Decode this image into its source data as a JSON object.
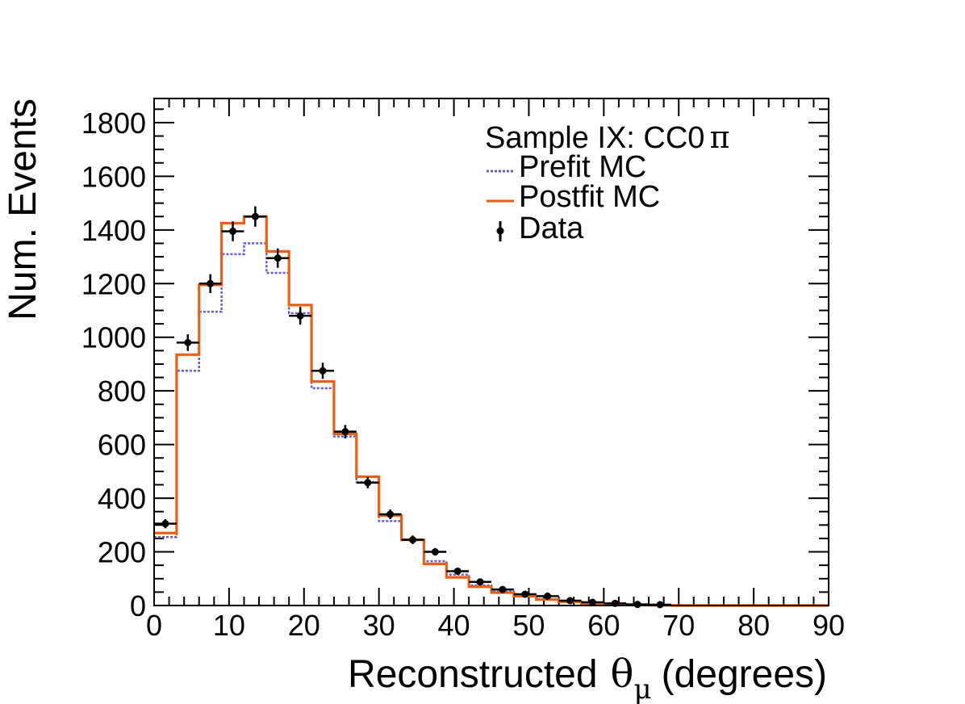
{
  "chart_data": {
    "type": "histogram",
    "title": "",
    "sample_label": {
      "prefix": "Sample IX: CC0",
      "symbol": "π"
    },
    "xlabel": {
      "prefix": "Reconstructed",
      "symbol": "θ",
      "subscript": "μ",
      "suffix": "(degrees)"
    },
    "ylabel": "Num. Events",
    "xlim": [
      0,
      90
    ],
    "ylim": [
      0,
      1890
    ],
    "x_ticks": [
      0,
      10,
      20,
      30,
      40,
      50,
      60,
      70,
      80,
      90
    ],
    "y_ticks": [
      0,
      200,
      400,
      600,
      800,
      1000,
      1200,
      1400,
      1600,
      1800
    ],
    "bin_edges": [
      0,
      3,
      6,
      9,
      12,
      15,
      18,
      21,
      24,
      27,
      30,
      33,
      36,
      39,
      42,
      45,
      48,
      51,
      54,
      57,
      60,
      63,
      66,
      69,
      72,
      75,
      78,
      81,
      84,
      87,
      90
    ],
    "legend": [
      {
        "label": "Prefit MC",
        "style": "dotted-line",
        "color": "#6a5acd"
      },
      {
        "label": "Postfit MC",
        "style": "solid-line",
        "color": "#ec5f13"
      },
      {
        "label": "Data",
        "style": "marker-errorbar",
        "color": "#000000"
      }
    ],
    "series": [
      {
        "name": "Prefit MC",
        "color": "#6a5acd",
        "values": [
          255,
          875,
          1095,
          1310,
          1350,
          1240,
          1090,
          810,
          630,
          460,
          315,
          245,
          165,
          115,
          75,
          52,
          38,
          24,
          14,
          8,
          4,
          2,
          1,
          0,
          0,
          0,
          0,
          0,
          0,
          0
        ]
      },
      {
        "name": "Postfit MC",
        "color": "#ec5f13",
        "values": [
          270,
          935,
          1195,
          1425,
          1450,
          1320,
          1120,
          835,
          640,
          480,
          335,
          245,
          155,
          105,
          70,
          48,
          35,
          22,
          14,
          8,
          4,
          2,
          1,
          0,
          0,
          0,
          0,
          0,
          0,
          0
        ]
      },
      {
        "name": "Data",
        "color": "#000000",
        "values": [
          305,
          980,
          1200,
          1395,
          1450,
          1295,
          1080,
          875,
          648,
          458,
          340,
          245,
          200,
          128,
          88,
          60,
          42,
          35,
          18,
          12,
          8,
          4,
          3,
          0,
          0,
          0,
          0,
          0,
          0,
          0
        ],
        "errors": [
          17,
          31,
          35,
          37,
          38,
          36,
          33,
          30,
          25,
          21,
          18,
          16,
          14,
          11,
          9,
          8,
          6,
          6,
          4,
          3,
          3,
          2,
          2,
          0,
          0,
          0,
          0,
          0,
          0,
          0
        ]
      }
    ]
  }
}
